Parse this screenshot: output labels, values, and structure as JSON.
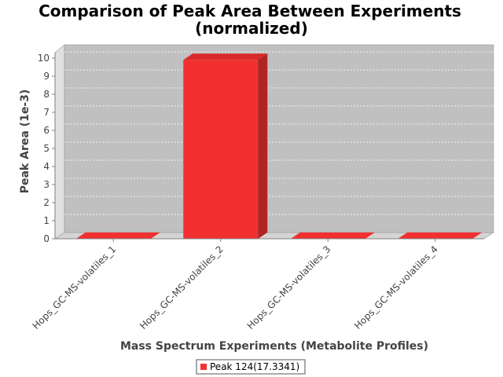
{
  "chart_data": {
    "type": "bar",
    "title_line1": "Comparison of Peak Area Between Experiments",
    "title_line2": "(normalized)",
    "xlabel": "Mass Spectrum Experiments (Metabolite Profiles)",
    "ylabel": "Peak Area (1e-3)",
    "categories": [
      "Hops_GC-MS-volatiles_1",
      "Hops_GC-MS-volatiles_2",
      "Hops_GC-MS-volatiles_3",
      "Hops_GC-MS-volatiles_4"
    ],
    "series": [
      {
        "name": "Peak 124(17.3341)",
        "values": [
          0,
          9.9,
          0,
          0
        ],
        "color": "#f23030"
      }
    ],
    "ylim": [
      0,
      10.5
    ],
    "yticks": [
      "0",
      "1",
      "2",
      "3",
      "4",
      "5",
      "6",
      "7",
      "8",
      "9",
      "10"
    ],
    "grid": true,
    "legend_position": "bottom-center",
    "plot_background": "#c0c0c0"
  }
}
